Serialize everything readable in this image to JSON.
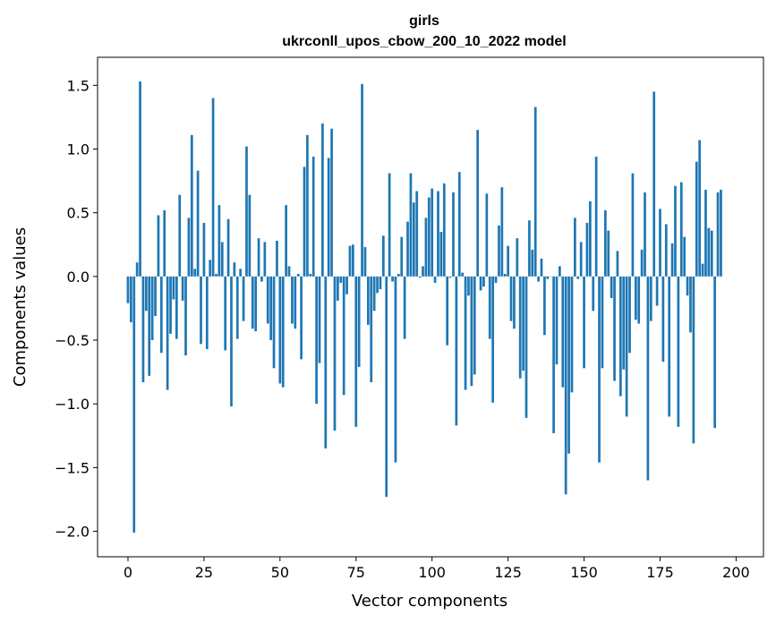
{
  "chart_data": {
    "type": "bar",
    "title": "girls",
    "subtitle": "ukrconll_upos_cbow_200_10_2022 model",
    "xlabel": "Vector components",
    "ylabel": "Components values",
    "xlim": [
      -10,
      209
    ],
    "ylim": [
      -2.2,
      1.72
    ],
    "xticks": [
      0,
      25,
      50,
      75,
      100,
      125,
      150,
      175,
      200
    ],
    "yticks": [
      1.5,
      1.0,
      0.5,
      0.0,
      -0.5,
      -1.0,
      -1.5,
      -2.0
    ],
    "ytick_labels": [
      "1.5",
      "1.0",
      "0.5",
      "0.0",
      "−0.5",
      "−1.0",
      "−1.5",
      "−2.0"
    ],
    "bar_color": "#1f77b4",
    "grid": false,
    "values": [
      -0.21,
      -0.36,
      -2.01,
      0.11,
      1.53,
      -0.83,
      -0.27,
      -0.78,
      -0.5,
      -0.31,
      0.48,
      -0.6,
      0.52,
      -0.89,
      -0.45,
      -0.18,
      -0.49,
      0.64,
      -0.19,
      -0.62,
      0.46,
      1.11,
      0.06,
      0.83,
      -0.53,
      0.42,
      -0.57,
      0.13,
      1.4,
      0.02,
      0.56,
      0.27,
      -0.58,
      0.45,
      -1.02,
      0.11,
      -0.49,
      0.06,
      -0.35,
      1.02,
      0.64,
      -0.41,
      -0.43,
      0.3,
      -0.04,
      0.27,
      -0.37,
      -0.5,
      -0.72,
      0.28,
      -0.84,
      -0.87,
      0.56,
      0.08,
      -0.37,
      -0.41,
      0.02,
      -0.65,
      0.86,
      1.11,
      0.02,
      0.94,
      -1.0,
      -0.68,
      1.2,
      -1.35,
      0.93,
      1.16,
      -1.21,
      -0.19,
      -0.05,
      -0.93,
      -0.14,
      0.24,
      0.25,
      -1.18,
      -0.71,
      1.51,
      0.23,
      -0.38,
      -0.83,
      -0.27,
      -0.13,
      -0.1,
      0.32,
      -1.73,
      0.81,
      -0.04,
      -1.46,
      0.02,
      0.31,
      -0.49,
      0.43,
      0.81,
      0.58,
      0.67,
      -0.01,
      0.08,
      0.46,
      0.62,
      0.69,
      -0.05,
      0.67,
      0.35,
      0.73,
      -0.54,
      -0.01,
      0.66,
      -1.17,
      0.82,
      0.03,
      -0.89,
      -0.15,
      -0.86,
      -0.77,
      1.15,
      -0.11,
      -0.08,
      0.65,
      -0.49,
      -0.99,
      -0.05,
      0.4,
      0.7,
      0.02,
      0.24,
      -0.35,
      -0.41,
      0.3,
      -0.8,
      -0.74,
      -1.11,
      0.44,
      0.21,
      1.33,
      -0.04,
      0.14,
      -0.46,
      -0.02,
      0.0,
      -1.23,
      -0.69,
      0.08,
      -0.87,
      -1.71,
      -1.39,
      -0.91,
      0.46,
      -0.02,
      0.27,
      -0.72,
      0.42,
      0.59,
      -0.27,
      0.94,
      -1.46,
      -0.72,
      0.52,
      0.36,
      -0.17,
      -0.82,
      0.2,
      -0.94,
      -0.73,
      -1.1,
      -0.6,
      0.81,
      -0.34,
      -0.37,
      0.21,
      0.66,
      -1.6,
      -0.35,
      1.45,
      -0.23,
      0.53,
      -0.67,
      0.41,
      -1.1,
      0.26,
      0.71,
      -1.18,
      0.74,
      0.31,
      -0.15,
      -0.44,
      -1.31,
      0.9,
      1.07,
      0.1,
      0.68,
      0.38,
      0.36,
      -1.19,
      0.66,
      0.68
    ]
  }
}
